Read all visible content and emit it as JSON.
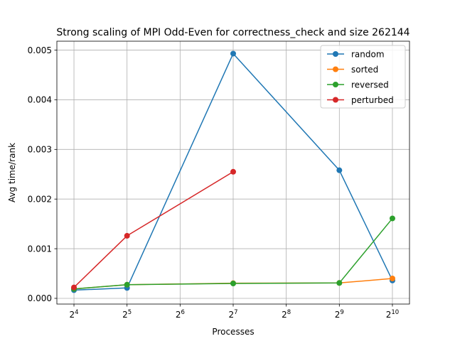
{
  "chart_data": {
    "type": "line",
    "title": "Strong scaling of MPI Odd-Even for correctness_check and size 262144",
    "xlabel": "Processes",
    "ylabel": "Avg time/rank",
    "x_scale": "log2",
    "x_ticks": [
      {
        "base": "2",
        "exp": "4"
      },
      {
        "base": "2",
        "exp": "5"
      },
      {
        "base": "2",
        "exp": "6"
      },
      {
        "base": "2",
        "exp": "7"
      },
      {
        "base": "2",
        "exp": "8"
      },
      {
        "base": "2",
        "exp": "9"
      },
      {
        "base": "2",
        "exp": "10"
      }
    ],
    "y_ticks": [
      "0.000",
      "0.001",
      "0.002",
      "0.003",
      "0.004",
      "0.005"
    ],
    "xlim": [
      12.8,
      1280
    ],
    "ylim": [
      -0.000115,
      0.00518
    ],
    "grid": true,
    "legend_position": "top-right",
    "series": [
      {
        "name": "random",
        "color": "#1f77b4",
        "x": [
          16,
          32,
          128,
          512,
          1024
        ],
        "y": [
          0.000165,
          0.00021,
          0.00493,
          0.00258,
          0.00036
        ]
      },
      {
        "name": "sorted",
        "color": "#ff7f0e",
        "x": [
          16,
          32,
          128,
          512,
          1024
        ],
        "y": [
          0.00019,
          0.000275,
          0.000305,
          0.00031,
          0.0004
        ]
      },
      {
        "name": "reversed",
        "color": "#2ca02c",
        "x": [
          16,
          32,
          128,
          512,
          1024
        ],
        "y": [
          0.00019,
          0.000275,
          0.0003,
          0.00031,
          0.00161
        ]
      },
      {
        "name": "perturbed",
        "color": "#d62728",
        "x": [
          16,
          32,
          128
        ],
        "y": [
          0.00022,
          0.00126,
          0.00255
        ]
      }
    ]
  }
}
